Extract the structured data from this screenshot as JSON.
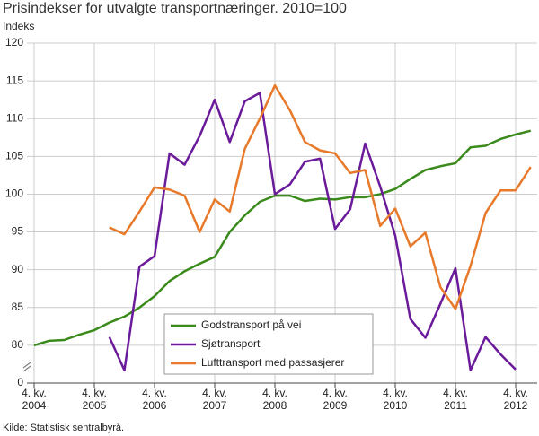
{
  "chart_data": {
    "type": "line",
    "title": "Prisindekser for utvalgte transportnæringer. 2010=100",
    "subtitle": "Indeks",
    "source": "Kilde: Statistisk sentralbyrå.",
    "categories": [
      "4. kv.\n2004",
      null,
      null,
      null,
      "4. kv.\n2005",
      null,
      null,
      null,
      "4. kv.\n2006",
      null,
      null,
      null,
      "4. kv.\n2007",
      null,
      null,
      null,
      "4. kv.\n2008",
      null,
      null,
      null,
      "4. kv.\n2009",
      null,
      null,
      null,
      "4. kv.\n2010",
      null,
      null,
      null,
      "4. kv.\n2011",
      null,
      null,
      null,
      "4. kv.\n2012",
      null
    ],
    "series": [
      {
        "name": "Godstransport på vei",
        "color": "#3a8a1c",
        "values": [
          80.0,
          80.6,
          80.7,
          81.4,
          82.0,
          83.0,
          83.8,
          85.0,
          86.5,
          88.5,
          89.8,
          90.8,
          91.7,
          95.0,
          97.2,
          99.0,
          99.8,
          99.8,
          99.1,
          99.4,
          99.3,
          99.6,
          99.6,
          100.0,
          100.7,
          102.0,
          103.2,
          103.7,
          104.1,
          106.2,
          106.4,
          107.3,
          107.9,
          108.4
        ]
      },
      {
        "name": "Sjøtransport",
        "color": "#6a1a9a",
        "values": [
          null,
          null,
          null,
          null,
          null,
          81.1,
          76.7,
          90.4,
          91.8,
          105.4,
          103.9,
          107.7,
          112.5,
          106.9,
          112.3,
          113.4,
          100.0,
          101.3,
          104.3,
          104.7,
          95.4,
          98.0,
          106.7,
          101.0,
          94.5,
          83.5,
          81.0,
          85.5,
          90.2,
          76.7,
          81.1,
          78.8,
          76.8,
          null
        ]
      },
      {
        "name": "Lufttransport med passasjerer",
        "color": "#e8792a",
        "values": [
          null,
          null,
          null,
          null,
          null,
          95.6,
          94.7,
          97.7,
          100.9,
          100.6,
          99.8,
          95.0,
          99.3,
          97.7,
          106.0,
          110.0,
          114.4,
          111.1,
          106.9,
          105.8,
          105.4,
          102.8,
          103.2,
          95.8,
          98.1,
          93.1,
          94.9,
          87.7,
          84.8,
          90.5,
          97.5,
          100.5,
          100.5,
          103.6
        ]
      }
    ],
    "ylim": [
      75,
      120
    ],
    "yticks": [
      80,
      85,
      90,
      95,
      100,
      105,
      110,
      115,
      120
    ],
    "axis_break_tick": 0,
    "grid": true
  }
}
